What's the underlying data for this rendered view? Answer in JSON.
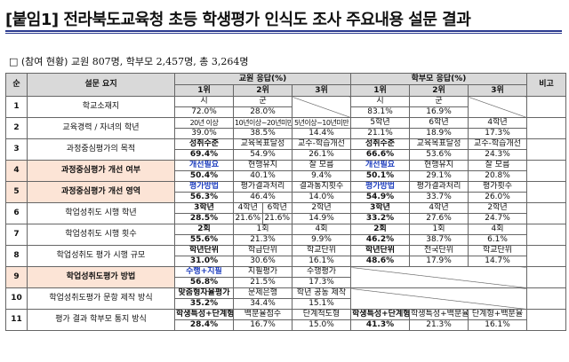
{
  "title": "[붙임1] 전라북도교육청 초등 학생평가 인식도 조사 주요내용 설문 결과",
  "summary": {
    "label": "□ (참여 현황)",
    "text": "교원 807명, 학부모 2,457명, 총 3,264명"
  },
  "headers": {
    "no": "순",
    "question": "설문 요지",
    "teacher": "교원 응답(%)",
    "parent": "학부모 응답(%)",
    "note": "비고",
    "rank1": "1위",
    "rank2": "2위",
    "rank3": "3위"
  },
  "rows": [
    {
      "no": "1",
      "q": "학교소재지",
      "t": [
        [
          "시",
          "군",
          ""
        ],
        [
          "72.0%",
          "28.0%",
          ""
        ]
      ],
      "p": [
        [
          "시",
          "군",
          ""
        ],
        [
          "83.1%",
          "16.9%",
          ""
        ]
      ]
    },
    {
      "no": "2",
      "q": "교육경력 / 자녀의 학년",
      "t": [
        [
          "20년 이상",
          "10년이상~20년미만",
          "5년이상~10년미만"
        ],
        [
          "39.0%",
          "38.5%",
          "14.4%"
        ]
      ],
      "p": [
        [
          "5학년",
          "6학년",
          "4학년"
        ],
        [
          "21.1%",
          "18.9%",
          "17.3%"
        ]
      ]
    },
    {
      "no": "3",
      "q": "과정중심평가의 목적",
      "t": [
        [
          "성취수준",
          "교육목표달성",
          "교수-학습개선"
        ],
        [
          "69.4%",
          "54.9%",
          "26.1%"
        ]
      ],
      "p": [
        [
          "성취수준",
          "교육목표달성",
          "교수-학습개선"
        ],
        [
          "66.6%",
          "53.6%",
          "24.3%"
        ]
      ]
    },
    {
      "no": "4",
      "q": "과정중심평가 개선 여부",
      "t": [
        [
          "개선필요",
          "현행유지",
          "잘 모름"
        ],
        [
          "50.4%",
          "40.1%",
          "9.4%"
        ]
      ],
      "p": [
        [
          "개선필요",
          "현행유지",
          "잘 모름"
        ],
        [
          "50.1%",
          "29.1%",
          "20.8%"
        ]
      ]
    },
    {
      "no": "5",
      "q": "과정중심평가 개선 영역",
      "t": [
        [
          "평가방법",
          "평가결과처리",
          "결과통지횟수"
        ],
        [
          "56.3%",
          "46.4%",
          "14.0%"
        ]
      ],
      "p": [
        [
          "평가방법",
          "평가결과처리",
          "평가횟수"
        ],
        [
          "54.9%",
          "33.7%",
          "26.0%"
        ]
      ]
    },
    {
      "no": "6",
      "q": "학업성취도 시행 학년",
      "t": [
        [
          "3학년",
          "4학년",
          "6학년",
          "2학년"
        ],
        [
          "28.5%",
          "21.6%",
          "21.6%",
          "14.9%"
        ]
      ],
      "p": [
        [
          "3학년",
          "4학년",
          "2학년"
        ],
        [
          "33.2%",
          "27.6%",
          "24.7%"
        ]
      ]
    },
    {
      "no": "7",
      "q": "학업성취도 시행 횟수",
      "t": [
        [
          "2회",
          "1회",
          "4회"
        ],
        [
          "55.6%",
          "21.3%",
          "9.9%"
        ]
      ],
      "p": [
        [
          "2회",
          "1회",
          "4회"
        ],
        [
          "46.2%",
          "38.7%",
          "6.1%"
        ]
      ]
    },
    {
      "no": "8",
      "q": "학업성취도 평가 시행 규모",
      "t": [
        [
          "학년단위",
          "학급단위",
          "학교단위"
        ],
        [
          "31.0%",
          "30.6%",
          "16.1%"
        ]
      ],
      "p": [
        [
          "학년단위",
          "전국단위",
          "학교단위"
        ],
        [
          "48.6%",
          "17.9%",
          "14.7%"
        ]
      ]
    },
    {
      "no": "9",
      "q": "학업성취도평가 방법",
      "t": [
        [
          "수행+지필",
          "지필평가",
          "수행평가"
        ],
        [
          "56.8%",
          "21.5%",
          "17.3%"
        ]
      ],
      "p": [
        [
          "",
          "",
          ""
        ],
        [
          "",
          "",
          ""
        ]
      ]
    },
    {
      "no": "10",
      "q": "학업성취도평가 문항 제작 방식",
      "t": [
        [
          "맞춤형자율평가",
          "문제은행",
          "학년 공동 제작"
        ],
        [
          "35.2%",
          "34.4%",
          "15.1%"
        ]
      ],
      "p": [
        [
          "",
          "",
          ""
        ],
        [
          "",
          "",
          ""
        ]
      ]
    },
    {
      "no": "11",
      "q": "평가 결과 학부모 통지 방식",
      "t": [
        [
          "학생특성+단계형",
          "백분율점수",
          "단계척도형"
        ],
        [
          "28.4%",
          "16.7%",
          "15.0%"
        ]
      ],
      "p": [
        [
          "학생특성+단계형",
          "학생특성+백분율",
          "단계형+백분율"
        ],
        [
          "41.3%",
          "21.3%",
          "16.1%"
        ]
      ]
    }
  ]
}
